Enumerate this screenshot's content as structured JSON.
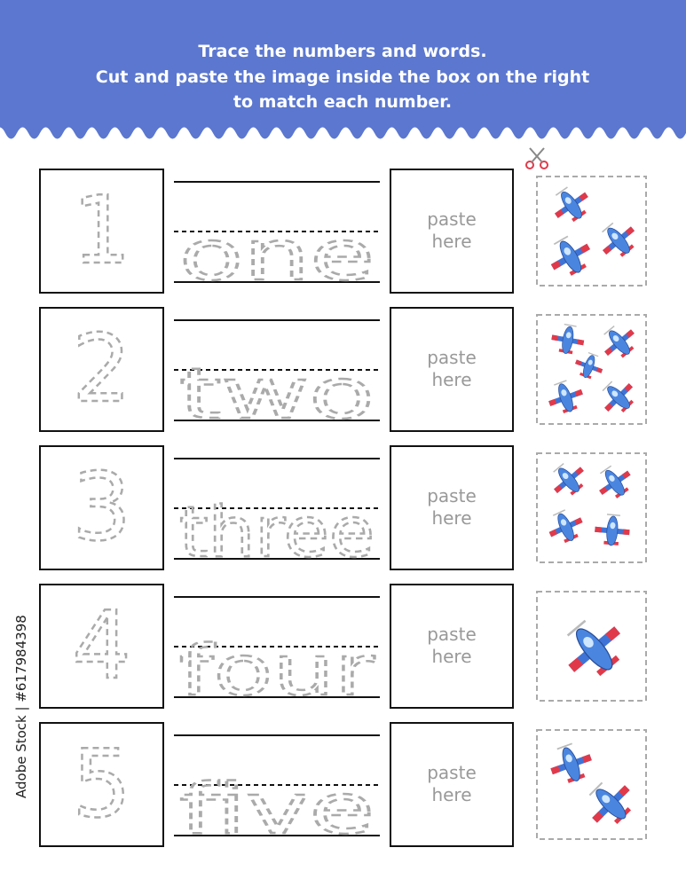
{
  "header": {
    "lines": [
      "Trace the numbers and words.",
      "Cut and paste the image inside the box on the right",
      "to match each number."
    ]
  },
  "rows": [
    {
      "number": "1",
      "word": "one",
      "paste_label": [
        "paste",
        "here"
      ]
    },
    {
      "number": "2",
      "word": "two",
      "paste_label": [
        "paste",
        "here"
      ]
    },
    {
      "number": "3",
      "word": "three",
      "paste_label": [
        "paste",
        "here"
      ]
    },
    {
      "number": "4",
      "word": "four",
      "paste_label": [
        "paste",
        "here"
      ]
    },
    {
      "number": "5",
      "word": "five",
      "paste_label": [
        "paste",
        "here"
      ]
    }
  ],
  "watermark": "Adobe Stock | #617984398"
}
